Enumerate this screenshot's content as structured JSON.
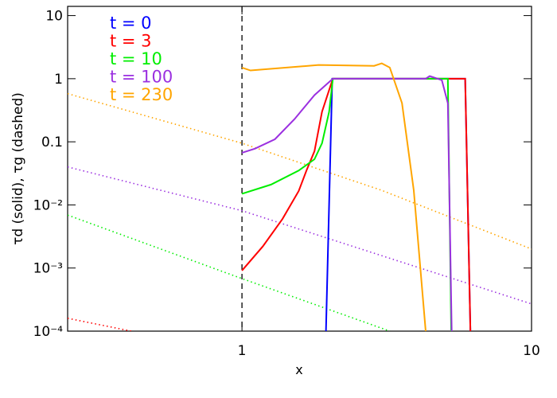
{
  "chart_data": {
    "type": "line",
    "x_label": "x",
    "y_label": "τd (solid), τg (dashed)",
    "xlog": true,
    "ylog": true,
    "xlim": [
      0.25,
      10
    ],
    "ylim": [
      0.0001,
      14
    ],
    "xticks": [
      1,
      10
    ],
    "yticks": [
      {
        "value": 0.0001,
        "label": "10⁻⁴"
      },
      {
        "value": 0.001,
        "label": "10⁻³"
      },
      {
        "value": 0.01,
        "label": "10⁻²"
      },
      0.1,
      1,
      10
    ],
    "vline": 1,
    "legend": "upper left",
    "series": [
      {
        "name": "t = 0",
        "color": "#0000ff",
        "x": [
          1.95,
          2.05,
          5.9,
          6.15
        ],
        "values": [
          0.0001,
          1,
          1,
          0.0001
        ]
      },
      {
        "name": "t = 3",
        "color": "#ff0000",
        "x": [
          1,
          1.18,
          1.38,
          1.57,
          1.67,
          1.78,
          1.89,
          2.06,
          5.9,
          6.15
        ],
        "values": [
          0.00091,
          0.0022,
          0.006,
          0.0166,
          0.035,
          0.071,
          0.3,
          1,
          1,
          0.0001
        ],
        "x_dashed": [
          0.25,
          0.415
        ],
        "values_dashed": [
          0.00016,
          0.0001
        ]
      },
      {
        "name": "t = 10",
        "color": "#00ee00",
        "x": [
          1,
          1.26,
          1.57,
          1.78,
          1.89,
          2.0,
          2.06,
          5.14,
          5.28
        ],
        "values": [
          0.015,
          0.021,
          0.035,
          0.053,
          0.095,
          0.3,
          1,
          1,
          0.0001
        ],
        "x_dashed": [
          0.25,
          1,
          3.24
        ],
        "values_dashed": [
          0.0069,
          0.00068,
          0.0001
        ]
      },
      {
        "name": "t = 100",
        "color": "#9b30e0",
        "x": [
          1,
          1.11,
          1.3,
          1.52,
          1.78,
          2.06,
          4.31,
          4.45,
          4.9,
          5.14,
          5.3
        ],
        "values": [
          0.067,
          0.078,
          0.11,
          0.23,
          0.55,
          1,
          1,
          1.1,
          0.95,
          0.41,
          0.0001
        ],
        "x_dashed": [
          0.25,
          1,
          10
        ],
        "values_dashed": [
          0.04,
          0.0081,
          0.00027
        ]
      },
      {
        "name": "t = 230",
        "color": "#ffa500",
        "x": [
          1,
          1.07,
          1.84,
          2.86,
          3.04,
          3.24,
          3.57,
          3.92,
          4.31
        ],
        "values": [
          1.5,
          1.35,
          1.65,
          1.6,
          1.75,
          1.5,
          0.41,
          0.017,
          0.0001
        ],
        "x_dashed": [
          0.25,
          1,
          3.04,
          10
        ],
        "values_dashed": [
          0.58,
          0.095,
          0.017,
          0.002
        ]
      }
    ]
  }
}
